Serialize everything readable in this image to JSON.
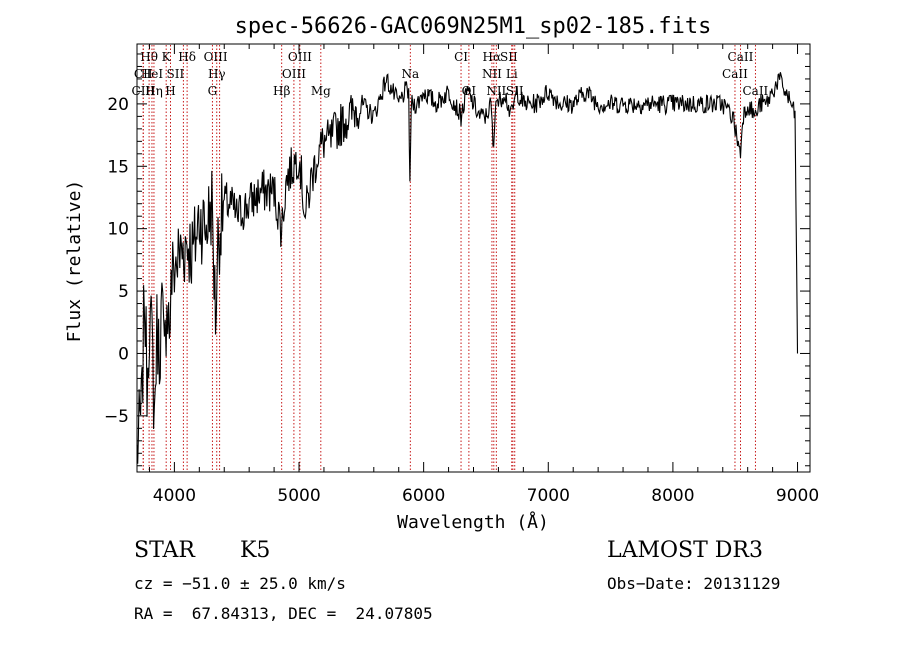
{
  "chart_data": {
    "type": "line",
    "title": "spec-56626-GAC069N25M1_sp02-185.fits",
    "xlabel": "Wavelength (Å)",
    "ylabel": "Flux (relative)",
    "xlim": [
      3700,
      9100
    ],
    "ylim": [
      -9.5,
      24.8
    ],
    "xticks": [
      4000,
      5000,
      6000,
      7000,
      8000,
      9000
    ],
    "xtick_labels": [
      "4000",
      "5000",
      "6000",
      "7000",
      "8000",
      "9000"
    ],
    "yticks": [
      -5,
      0,
      5,
      10,
      15,
      20
    ],
    "ytick_labels": [
      "−5",
      "0",
      "5",
      "10",
      "15",
      "20"
    ],
    "series": [
      {
        "name": "flux",
        "x": [
          3700,
          3740,
          3760,
          3780,
          3800,
          3820,
          3840,
          3860,
          3880,
          3900,
          3920,
          3940,
          3960,
          3980,
          4000,
          4050,
          4100,
          4150,
          4200,
          4250,
          4300,
          4330,
          4350,
          4380,
          4400,
          4450,
          4500,
          4600,
          4700,
          4800,
          4860,
          4900,
          4950,
          5000,
          5050,
          5100,
          5150,
          5200,
          5250,
          5300,
          5400,
          5500,
          5600,
          5700,
          5750,
          5800,
          5850,
          5880,
          5890,
          5900,
          5950,
          6000,
          6100,
          6200,
          6300,
          6350,
          6400,
          6450,
          6500,
          6540,
          6562,
          6580,
          6600,
          6650,
          6700,
          6750,
          6800,
          6900,
          7000,
          7100,
          7200,
          7300,
          7400,
          7500,
          7600,
          7700,
          7800,
          7900,
          8000,
          8100,
          8200,
          8300,
          8400,
          8480,
          8500,
          8542,
          8560,
          8600,
          8662,
          8700,
          8750,
          8800,
          8850,
          8900,
          8950,
          8980,
          9000
        ],
        "y": [
          -8,
          -4,
          5,
          -2,
          3,
          1,
          -5,
          2,
          0,
          4,
          -1,
          5,
          2,
          6,
          7,
          8,
          9,
          8,
          11,
          10,
          12,
          3,
          9,
          11,
          12,
          12,
          11,
          12,
          13,
          13,
          10,
          14,
          15,
          16,
          11,
          14,
          16,
          17,
          17,
          18,
          19,
          20,
          19,
          22,
          21,
          20,
          21,
          21,
          13,
          20,
          20,
          21,
          20,
          21,
          19,
          21,
          20,
          19,
          19,
          20,
          16,
          21,
          20,
          21,
          19,
          21,
          20,
          20,
          21,
          20,
          20,
          21,
          20,
          20,
          20,
          20,
          20,
          20,
          20,
          20,
          20,
          20,
          20,
          19,
          18,
          16,
          19,
          20,
          19,
          20,
          20,
          21,
          22,
          21,
          20,
          19,
          0
        ]
      }
    ],
    "lines": [
      {
        "label": "Hθ",
        "x": 3797,
        "row": 1,
        "dx": 0
      },
      {
        "label": "CII",
        "x": 3750,
        "row": 2,
        "dx": 0
      },
      {
        "label": "HeI",
        "x": 3820,
        "row": 2,
        "dx": 0
      },
      {
        "label": "CIII",
        "x": 3750,
        "row": 3,
        "dx": 0
      },
      {
        "label": "Hη",
        "x": 3836,
        "row": 3,
        "dx": 0
      },
      {
        "label": "K",
        "x": 3934,
        "row": 1,
        "dx": 0
      },
      {
        "label": "SII",
        "x": 4072,
        "row": 2,
        "dx": -8
      },
      {
        "label": "H",
        "x": 3969,
        "row": 3,
        "dx": 0
      },
      {
        "label": "Hδ",
        "x": 4102,
        "row": 1,
        "dx": 0
      },
      {
        "label": "OIII",
        "x": 4363,
        "row": 1,
        "dx": -4
      },
      {
        "label": "Hγ",
        "x": 4340,
        "row": 2,
        "dx": 0
      },
      {
        "label": "G",
        "x": 4305,
        "row": 3,
        "dx": 0
      },
      {
        "label": "Hβ",
        "x": 4861,
        "row": 3,
        "dx": 0
      },
      {
        "label": "OIII",
        "x": 5007,
        "row": 1,
        "dx": 0
      },
      {
        "label": "OIII",
        "x": 4959,
        "row": 2,
        "dx": 0
      },
      {
        "label": "Mg",
        "x": 5175,
        "row": 3,
        "dx": 0
      },
      {
        "label": "Na",
        "x": 5893,
        "row": 2,
        "dx": 0
      },
      {
        "label": "CI",
        "x": 6300,
        "row": 1,
        "dx": 0
      },
      {
        "label": "OI",
        "x": 6363,
        "row": 3,
        "dx": 0
      },
      {
        "label": "Hα",
        "x": 6563,
        "row": 1,
        "dx": -2
      },
      {
        "label": "SII",
        "x": 6716,
        "row": 1,
        "dx": -4
      },
      {
        "label": "NII",
        "x": 6548,
        "row": 2,
        "dx": 0
      },
      {
        "label": "Li",
        "x": 6707,
        "row": 2,
        "dx": 0
      },
      {
        "label": "NII",
        "x": 6583,
        "row": 3,
        "dx": 0
      },
      {
        "label": "SII",
        "x": 6731,
        "row": 3,
        "dx": 0
      },
      {
        "label": "CaII",
        "x": 8542,
        "row": 1,
        "dx": 0
      },
      {
        "label": "CaII",
        "x": 8498,
        "row": 2,
        "dx": 0
      },
      {
        "label": "CaII",
        "x": 8662,
        "row": 3,
        "dx": 0
      }
    ],
    "line_color": "#c00000"
  },
  "info": {
    "class": "STAR",
    "subclass": "K5",
    "survey": "LAMOST DR3",
    "cz": "cz = −51.0 ± 25.0 km/s",
    "obs_date": "Obs−Date: 20131129",
    "radec": "RA =  67.84313, DEC =  24.07805"
  }
}
